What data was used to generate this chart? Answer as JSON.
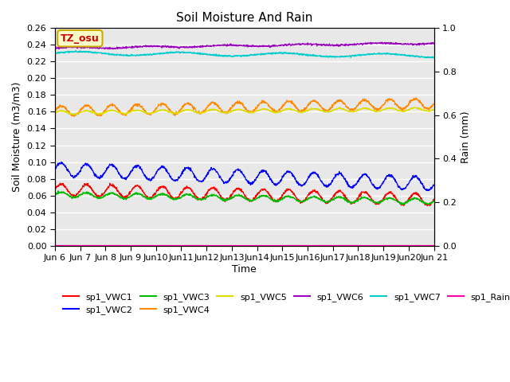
{
  "title": "Soil Moisture And Rain",
  "xlabel": "Time",
  "ylabel_left": "Soil Moisture (m3/m3)",
  "ylabel_right": "Rain (mm)",
  "ylim_left": [
    0.0,
    0.26
  ],
  "ylim_right": [
    0.0,
    1.0
  ],
  "xlim": [
    0,
    360
  ],
  "x_tick_labels": [
    "Jun 6",
    "Jun 7",
    "Jun 8",
    "Jun 9",
    "Jun10",
    "Jun11",
    "Jun12",
    "Jun13",
    "Jun14",
    "Jun15",
    "Jun16",
    "Jun17",
    "Jun18",
    "Jun19",
    "Jun20",
    "Jun 21"
  ],
  "x_tick_positions": [
    0,
    24,
    48,
    72,
    96,
    120,
    144,
    168,
    192,
    216,
    240,
    264,
    288,
    312,
    336,
    360
  ],
  "annotation_text": "TZ_osu",
  "annotation_color": "#cc0000",
  "annotation_bg": "#ffffcc",
  "annotation_border": "#ccaa00",
  "series_colors": {
    "sp1_VWC1": "#ff0000",
    "sp1_VWC2": "#0000ff",
    "sp1_VWC3": "#00bb00",
    "sp1_VWC4": "#ff8800",
    "sp1_VWC5": "#dddd00",
    "sp1_VWC6": "#9900bb",
    "sp1_VWC7": "#00cccc",
    "sp1_Rain": "#ff00aa"
  },
  "background_color": "#e8e8e8",
  "grid_color": "#ffffff",
  "n_points": 1441
}
